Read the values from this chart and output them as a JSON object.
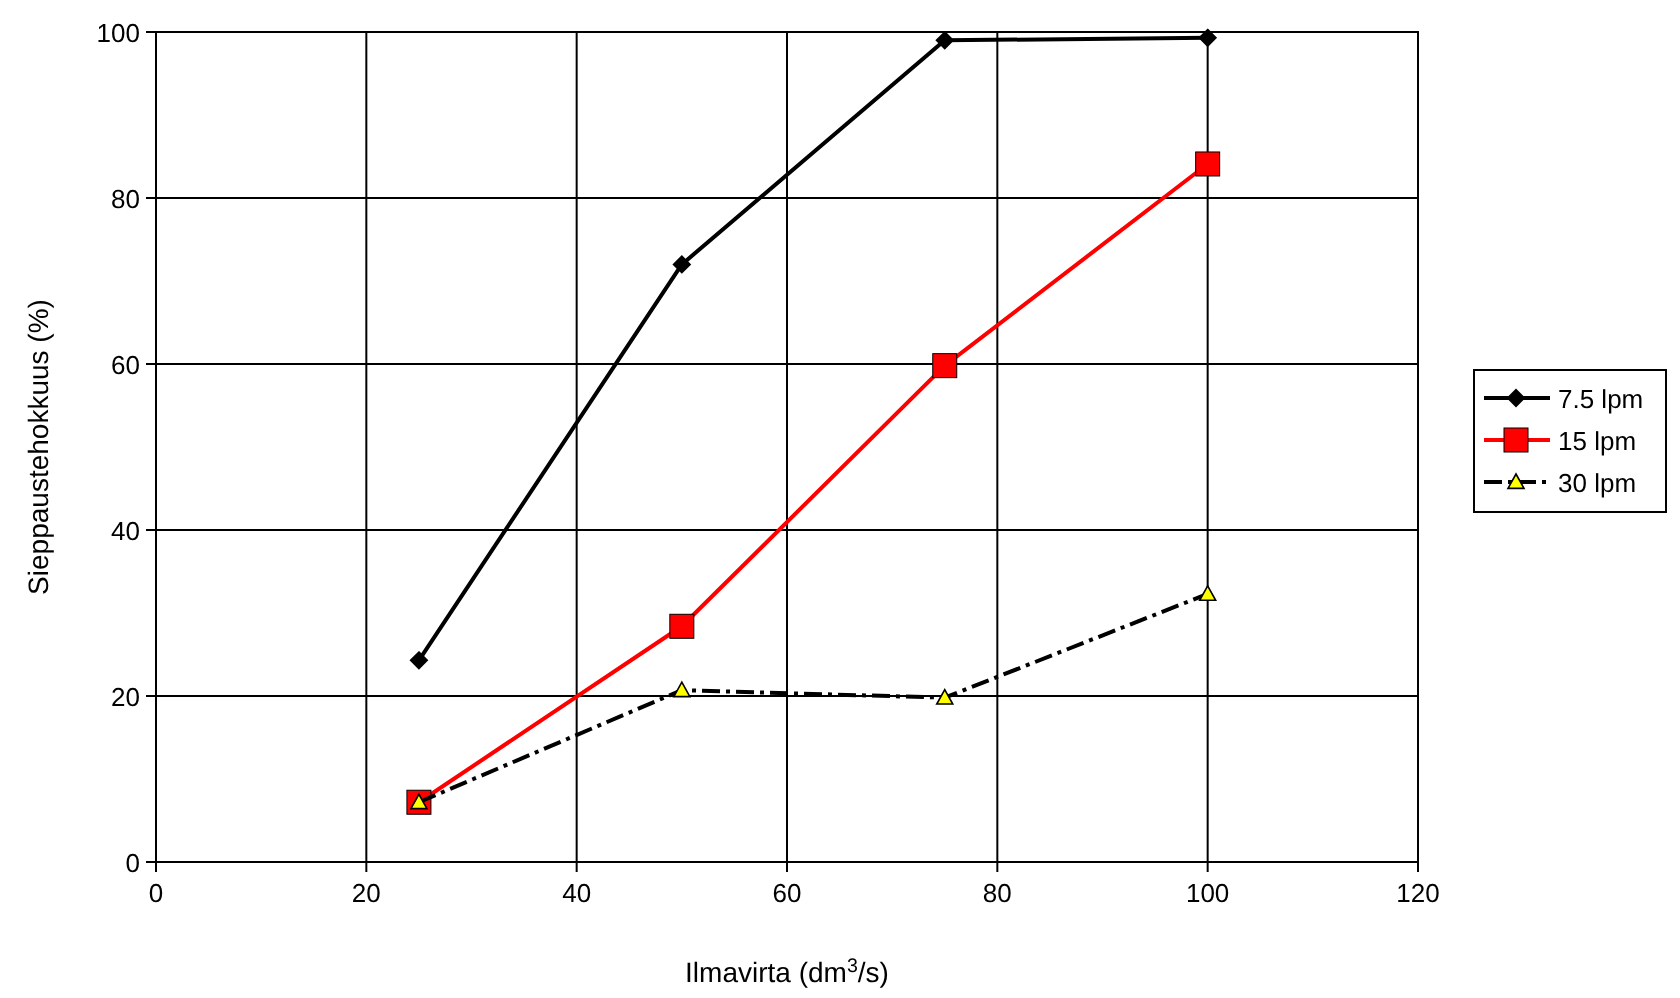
{
  "chart_data": {
    "type": "line",
    "xlabel": "Ilmavirta (dm$^{3}$/s)",
    "ylabel": "Sieppaustehokkuus (%)",
    "x": [
      25,
      50,
      75,
      100
    ],
    "xlim": [
      0,
      120
    ],
    "xticks": [
      0,
      20,
      40,
      60,
      80,
      100,
      120
    ],
    "ylim": [
      0,
      100
    ],
    "yticks": [
      0,
      20,
      40,
      60,
      80,
      100
    ],
    "grid": true,
    "legend": "right",
    "series": [
      {
        "name": "7.5 lpm",
        "color": "#000000",
        "values": [
          24.3,
          72,
          99,
          99.3
        ],
        "marker": "diamond",
        "line_style": "solid"
      },
      {
        "name": "15 lpm",
        "color": "#ff0000",
        "values": [
          7.2,
          28.4,
          59.8,
          84.1
        ],
        "marker": "square",
        "line_style": "solid"
      },
      {
        "name": "30 lpm",
        "color": "#000000",
        "values": [
          7.2,
          20.7,
          19.8,
          32.3
        ],
        "marker": "triangle",
        "line_style": "dashed"
      }
    ]
  }
}
